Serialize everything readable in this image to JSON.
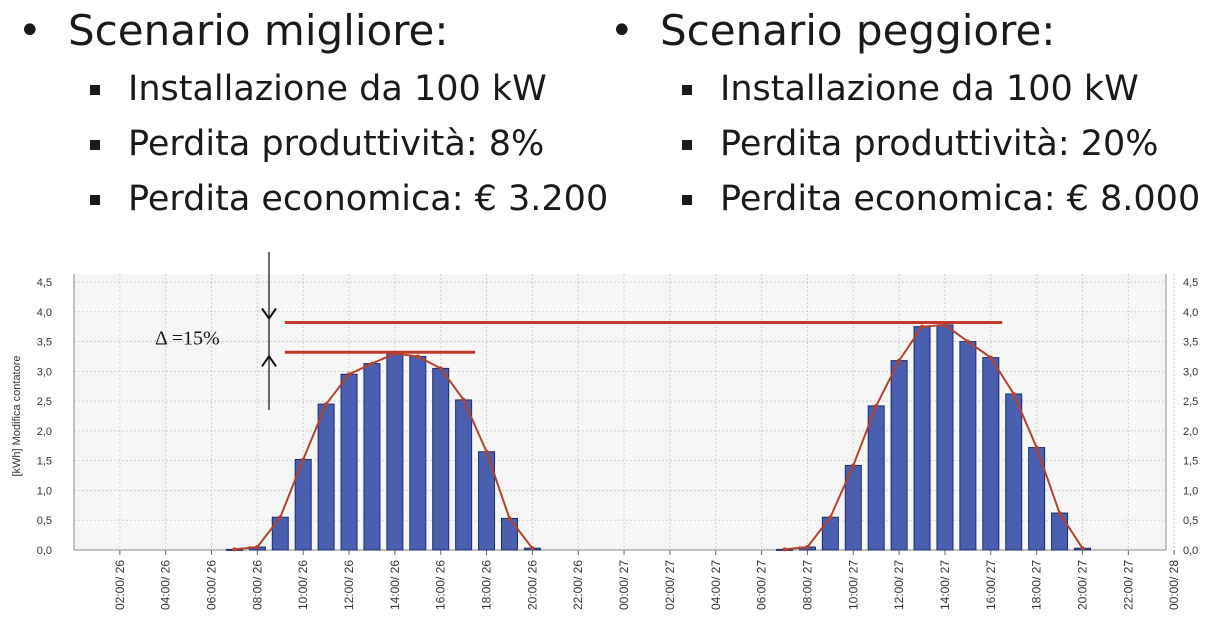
{
  "scenarios": [
    {
      "title": "Scenario migliore:",
      "items": [
        "Installazione da 100 kW",
        "Perdita produttività: 8%",
        "Perdita economica: € 3.200"
      ]
    },
    {
      "title": "Scenario peggiore:",
      "items": [
        "Installazione da 100 kW",
        "Perdita produttività: 20%",
        "Perdita economica: € 8.000"
      ]
    }
  ],
  "chart_data": {
    "type": "bar",
    "ylabel": "[kWh] Modifica contatore",
    "ylim": [
      0,
      4.5
    ],
    "yticks": [
      "0,0",
      "0,5",
      "1,0",
      "1,5",
      "2,0",
      "2,5",
      "3,0",
      "3,5",
      "4,0",
      "4,5"
    ],
    "xticks": [
      "02:00/ 26",
      "04:00/ 26",
      "06:00/ 26",
      "08:00/ 26",
      "10:00/ 26",
      "12:00/ 26",
      "14:00/ 26",
      "16:00/ 26",
      "18:00/ 26",
      "20:00/ 26",
      "22:00/ 26",
      "00:00/ 27",
      "02:00/ 27",
      "04:00/ 27",
      "06:00/ 27",
      "08:00/ 27",
      "10:00/ 27",
      "12:00/ 27",
      "14:00/ 27",
      "16:00/ 27",
      "18:00/ 27",
      "20:00/ 27",
      "22:00/ 27",
      "00:00/ 28"
    ],
    "hours": [
      7,
      8,
      9,
      10,
      11,
      12,
      13,
      14,
      15,
      16,
      17,
      18,
      19,
      20,
      31,
      32,
      33,
      34,
      35,
      36,
      37,
      38,
      39,
      40,
      41,
      42,
      43,
      44
    ],
    "values": [
      0.01,
      0.05,
      0.55,
      1.52,
      2.45,
      2.95,
      3.13,
      3.3,
      3.25,
      3.05,
      2.52,
      1.65,
      0.53,
      0.03,
      0.01,
      0.05,
      0.55,
      1.42,
      2.42,
      3.18,
      3.75,
      3.78,
      3.5,
      3.23,
      2.62,
      1.72,
      0.62,
      0.03
    ],
    "bar_color": "#4a5fb0",
    "line_color": "#b5422a",
    "reference_lines": [
      {
        "value": 3.32,
        "from_hour": 9.2,
        "to_hour": 17.5
      },
      {
        "value": 3.82,
        "from_hour": 9.2,
        "to_hour": 40.5
      }
    ],
    "annotation": "Δ =15%",
    "grid": true
  }
}
